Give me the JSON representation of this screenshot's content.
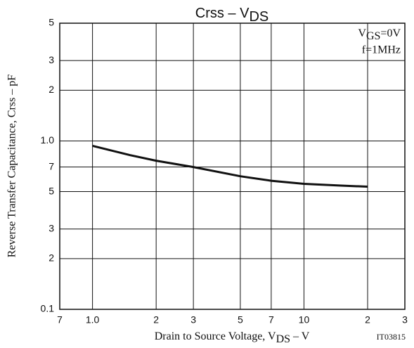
{
  "chart_data": {
    "type": "line",
    "log_x": true,
    "log_y": true,
    "grid": true,
    "title": [
      "Crss – V",
      "DS"
    ],
    "x_label": [
      "Drain to Source Voltage, V",
      "DS",
      " – V"
    ],
    "y_label": "Reverse Transfer Capacitance, Crss – pF",
    "annotations": [
      [
        "V",
        "GS",
        "=0V"
      ],
      "f=1MHz"
    ],
    "figure_id": "IT03815",
    "color": "#111111",
    "x": [
      1,
      1.5,
      2,
      3,
      5,
      7,
      10,
      15,
      20
    ],
    "values": [
      0.935,
      0.824,
      0.763,
      0.7,
      0.617,
      0.58,
      0.556,
      0.543,
      0.535
    ],
    "xlim": [
      0.7,
      30
    ],
    "xticks": [
      {
        "value": 0.7,
        "label": "7"
      },
      {
        "value": 1,
        "label": "1.0"
      },
      2,
      3,
      5,
      7,
      10,
      {
        "value": 20,
        "label": "2"
      },
      {
        "value": 30,
        "label": "3"
      }
    ],
    "ylim": [
      0.1,
      5
    ],
    "yticks": [
      0.1,
      {
        "value": 0.2,
        "label": "2"
      },
      {
        "value": 0.3,
        "label": "3"
      },
      {
        "value": 0.5,
        "label": "5"
      },
      {
        "value": 0.7,
        "label": "7"
      },
      {
        "value": 1,
        "label": "1.0"
      },
      2,
      3,
      5
    ]
  }
}
